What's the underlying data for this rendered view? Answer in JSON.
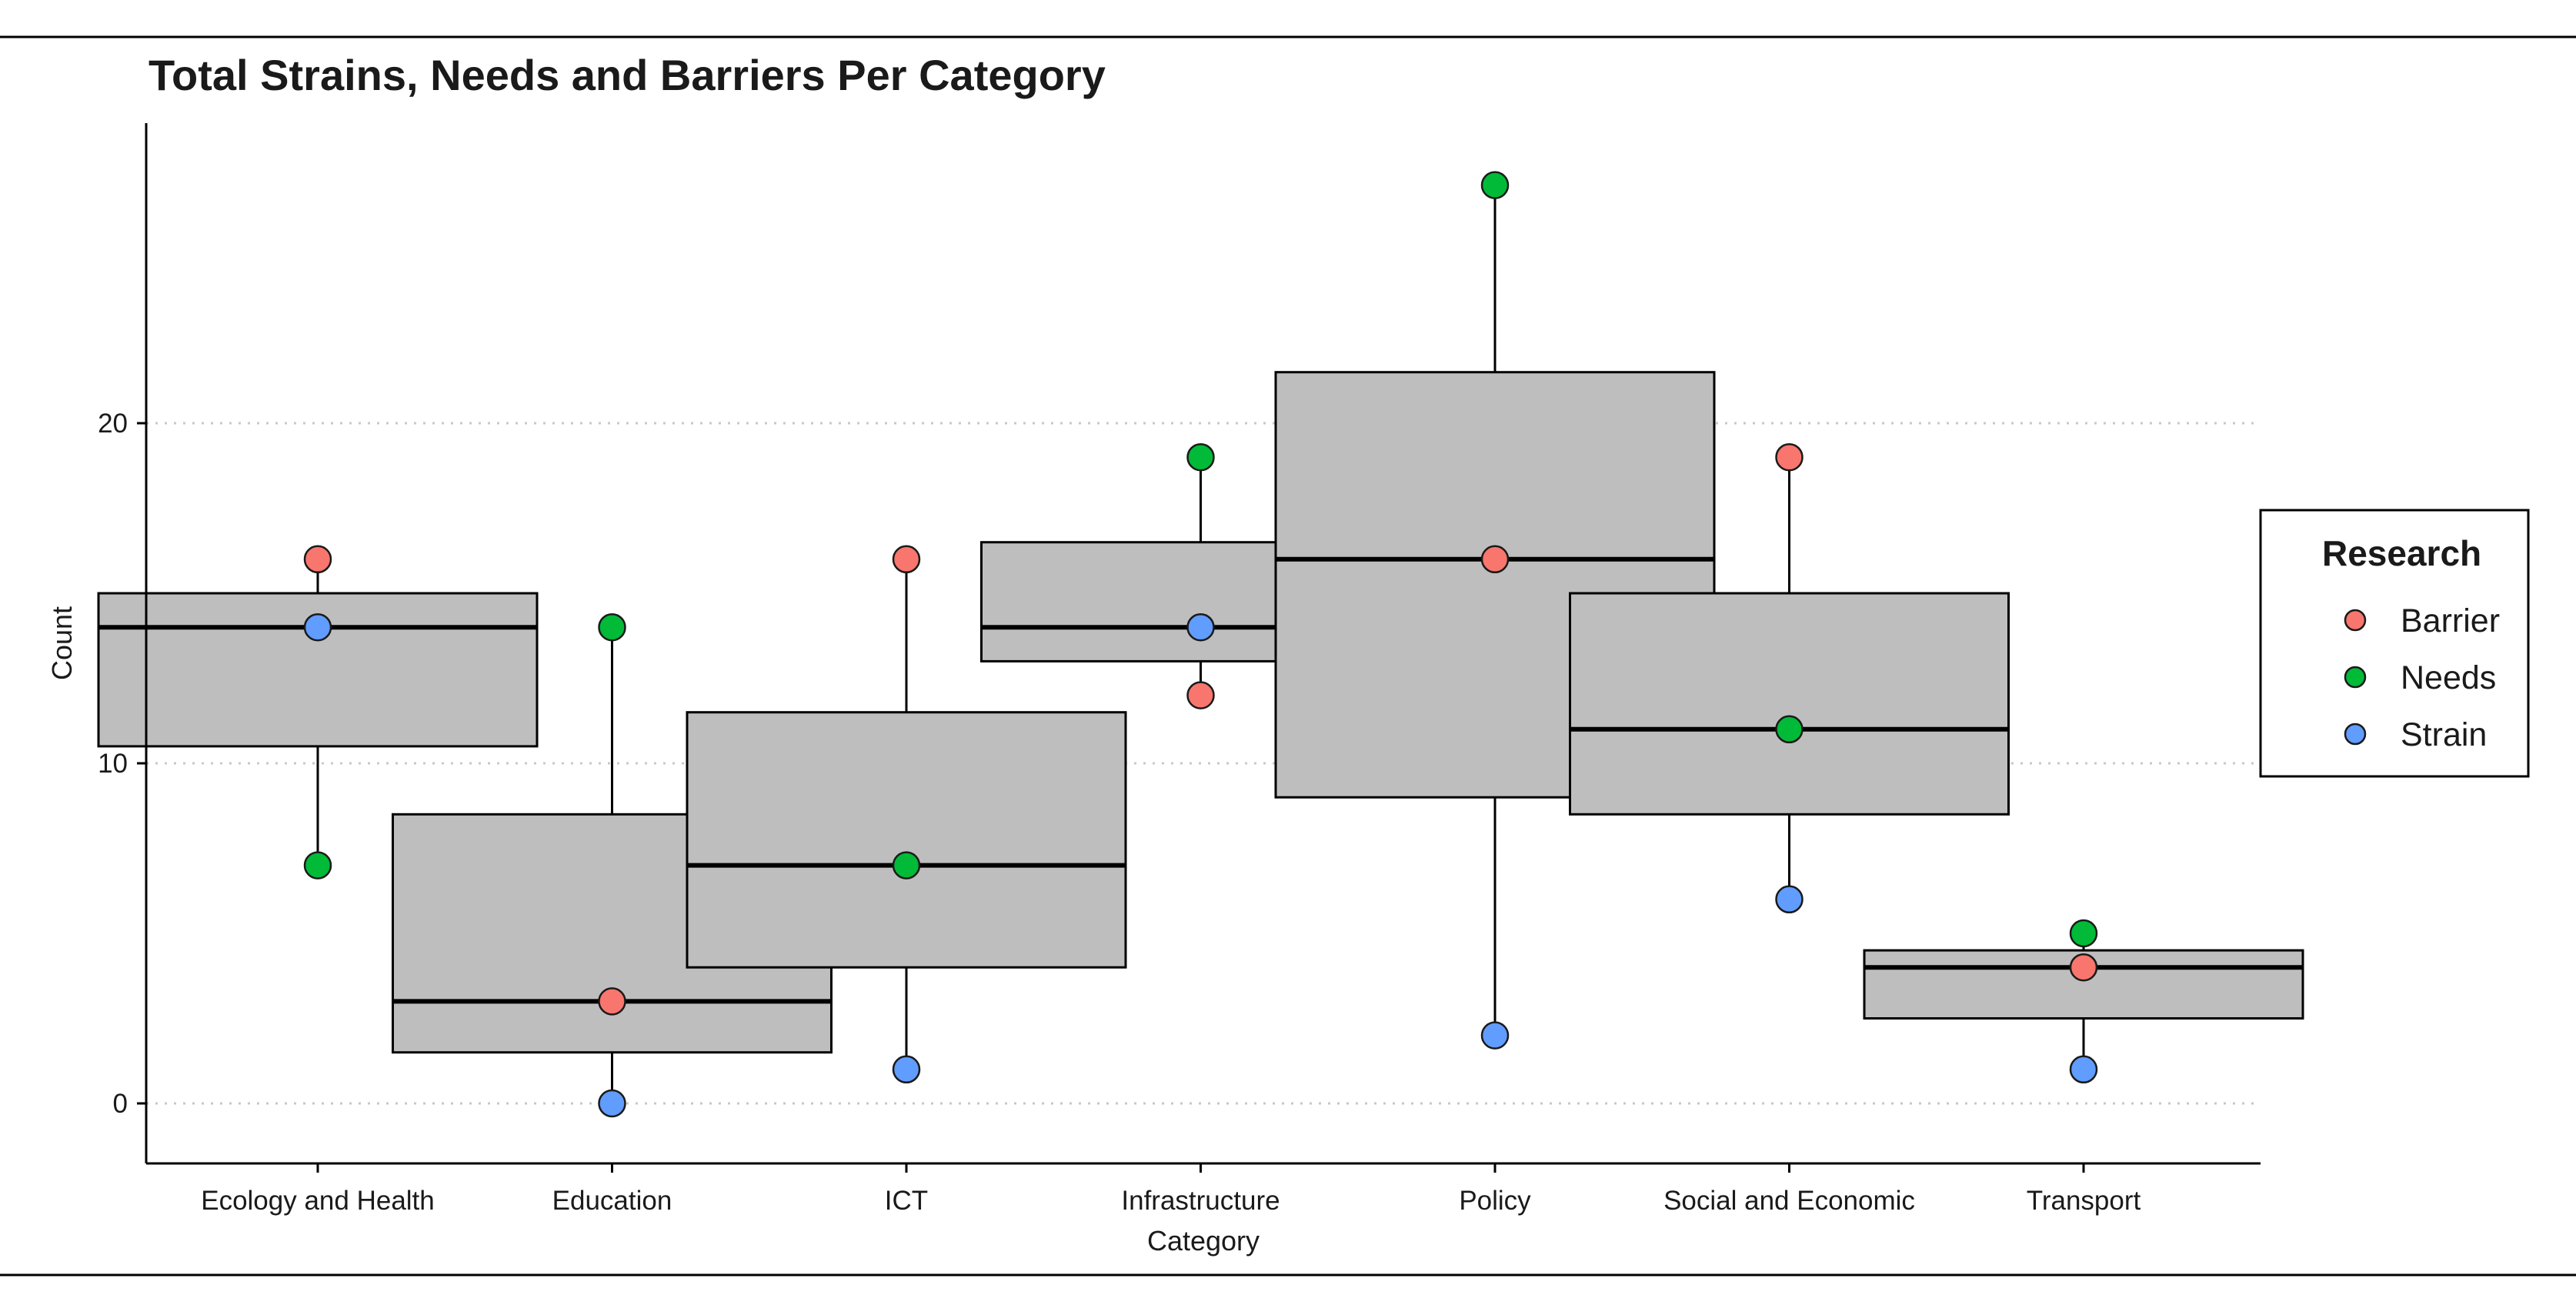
{
  "chart_data": {
    "type": "boxplot",
    "title": "Total Strains, Needs and Barriers Per Category",
    "xlabel": "Category",
    "ylabel": "Count",
    "ylim": [
      -1.7,
      28.5
    ],
    "yticks": [
      0,
      10,
      20
    ],
    "grid": "horizontal dotted at major y ticks",
    "legend_position": "right",
    "legend": {
      "title": "Research",
      "entries": [
        {
          "name": "Barrier",
          "color": "#F8766D"
        },
        {
          "name": "Needs",
          "color": "#00BA38"
        },
        {
          "name": "Strain",
          "color": "#619CFF"
        }
      ]
    },
    "categories": [
      "Ecology and Health",
      "Education",
      "ICT",
      "Infrastructure",
      "Policy",
      "Social and Economic",
      "Transport"
    ],
    "series": [
      {
        "name": "Barrier",
        "values": [
          16,
          3,
          16,
          12,
          16,
          19,
          4
        ]
      },
      {
        "name": "Needs",
        "values": [
          7,
          14,
          7,
          19,
          27,
          11,
          5
        ]
      },
      {
        "name": "Strain",
        "values": [
          14,
          0,
          1,
          14,
          2,
          6,
          1
        ]
      }
    ],
    "boxes": [
      {
        "category": "Ecology and Health",
        "min": 7,
        "q1": 10.5,
        "median": 14,
        "q3": 15,
        "max": 16
      },
      {
        "category": "Education",
        "min": 0,
        "q1": 1.5,
        "median": 3,
        "q3": 8.5,
        "max": 14
      },
      {
        "category": "ICT",
        "min": 1,
        "q1": 4,
        "median": 7,
        "q3": 11.5,
        "max": 16
      },
      {
        "category": "Infrastructure",
        "min": 12,
        "q1": 13,
        "median": 14,
        "q3": 16.5,
        "max": 19
      },
      {
        "category": "Policy",
        "min": 2,
        "q1": 9,
        "median": 16,
        "q3": 21.5,
        "max": 27
      },
      {
        "category": "Social and Economic",
        "min": 6,
        "q1": 8.5,
        "median": 11,
        "q3": 15,
        "max": 19
      },
      {
        "category": "Transport",
        "min": 1,
        "q1": 2.5,
        "median": 4,
        "q3": 4.5,
        "max": 5
      }
    ],
    "colors": {
      "box_fill": "#BEBEBE",
      "box_stroke": "#000000",
      "grid": "#C8C8C8",
      "frame": "#000000"
    }
  }
}
